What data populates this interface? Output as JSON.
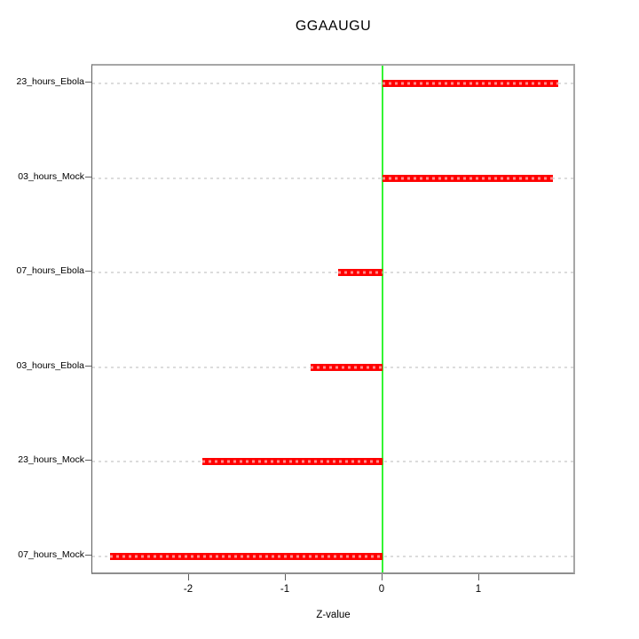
{
  "chart_data": {
    "type": "bar",
    "orientation": "horizontal",
    "title": "GGAAUGU",
    "xlabel": "Z-value",
    "ylabel": "",
    "categories": [
      "23_hours_Ebola",
      "03_hours_Mock",
      "07_hours_Ebola",
      "03_hours_Ebola",
      "23_hours_Mock",
      "07_hours_Mock"
    ],
    "values": [
      1.82,
      1.76,
      -0.46,
      -0.74,
      -1.86,
      -2.82
    ],
    "xlim": [
      -3.0,
      2.0
    ],
    "xticks": [
      -2,
      -1,
      0,
      1
    ],
    "xtick_labels": [
      "-2",
      "-1",
      "0",
      "1"
    ],
    "zero_line_value": 0,
    "grid": "horizontal dotted line per category",
    "legend": "none",
    "colors": {
      "bar": "#ff0000",
      "zero_line": "#33f533",
      "gridline": "#dcdcdc",
      "box_border": "#a6a6a6",
      "tick": "#5e5e5e",
      "text": "#000000",
      "background": "#ffffff"
    }
  }
}
